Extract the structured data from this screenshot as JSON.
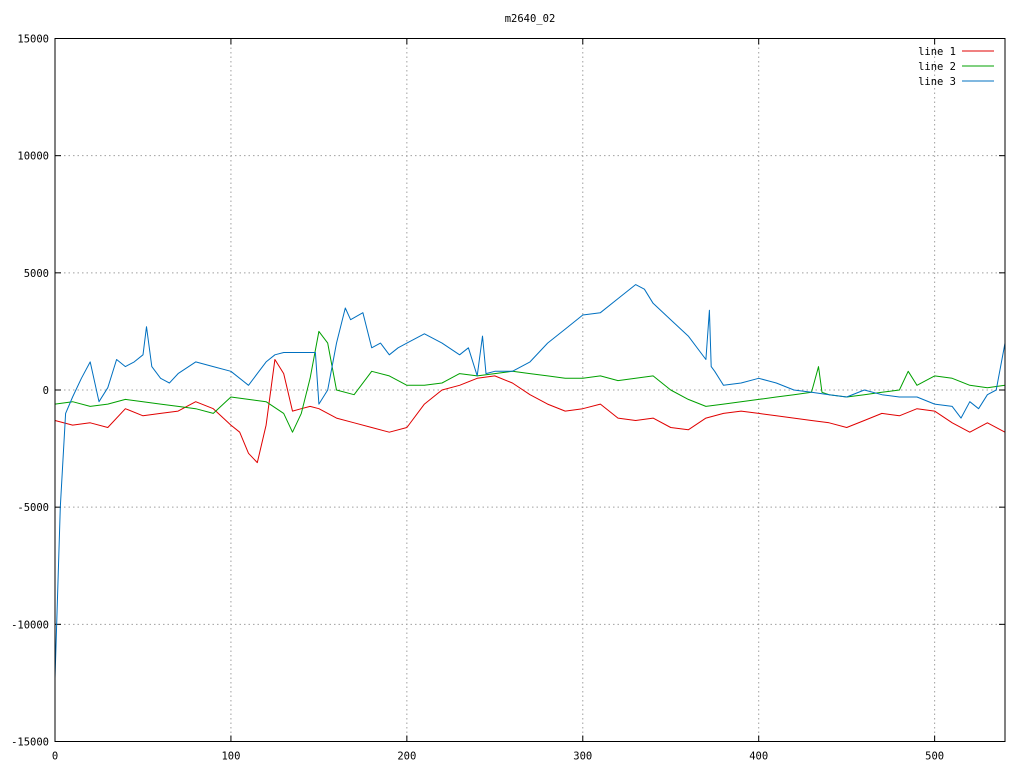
{
  "chart_data": {
    "type": "line",
    "title": "m2640_02",
    "xlabel": "",
    "ylabel": "",
    "xlim": [
      0,
      540
    ],
    "ylim": [
      -15000,
      15000
    ],
    "x_ticks": [
      0,
      100,
      200,
      300,
      400,
      500
    ],
    "y_ticks": [
      -15000,
      -10000,
      -5000,
      0,
      5000,
      10000,
      15000
    ],
    "grid": true,
    "legend_position": "top-right",
    "series": [
      {
        "name": "line 1",
        "color": "#e00000",
        "x": [
          0,
          10,
          20,
          30,
          40,
          50,
          60,
          70,
          80,
          90,
          100,
          105,
          110,
          115,
          120,
          125,
          130,
          135,
          140,
          145,
          150,
          160,
          170,
          180,
          190,
          200,
          210,
          220,
          230,
          240,
          250,
          260,
          270,
          280,
          290,
          300,
          310,
          320,
          330,
          340,
          350,
          360,
          370,
          380,
          390,
          400,
          410,
          420,
          430,
          440,
          450,
          460,
          470,
          480,
          490,
          500,
          510,
          520,
          530,
          540
        ],
        "y": [
          -1300,
          -1500,
          -1400,
          -1600,
          -800,
          -1100,
          -1000,
          -900,
          -500,
          -800,
          -1500,
          -1800,
          -2700,
          -3100,
          -1500,
          1300,
          700,
          -900,
          -800,
          -700,
          -800,
          -1200,
          -1400,
          -1600,
          -1800,
          -1600,
          -600,
          0,
          200,
          500,
          600,
          300,
          -200,
          -600,
          -900,
          -800,
          -600,
          -1200,
          -1300,
          -1200,
          -1600,
          -1700,
          -1200,
          -1000,
          -900,
          -1000,
          -1100,
          -1200,
          -1300,
          -1400,
          -1600,
          -1300,
          -1000,
          -1100,
          -800,
          -900,
          -1400,
          -1800,
          -1400,
          -1800
        ]
      },
      {
        "name": "line 2",
        "color": "#00a000",
        "x": [
          0,
          10,
          20,
          30,
          40,
          50,
          60,
          70,
          80,
          90,
          100,
          110,
          120,
          130,
          135,
          140,
          145,
          150,
          155,
          160,
          170,
          180,
          190,
          200,
          210,
          220,
          230,
          240,
          250,
          260,
          270,
          280,
          290,
          300,
          310,
          320,
          330,
          340,
          350,
          360,
          370,
          380,
          390,
          400,
          410,
          420,
          430,
          434,
          436,
          440,
          450,
          460,
          470,
          480,
          485,
          490,
          500,
          510,
          520,
          530,
          540
        ],
        "y": [
          -600,
          -500,
          -700,
          -600,
          -400,
          -500,
          -600,
          -700,
          -800,
          -1000,
          -300,
          -400,
          -500,
          -1000,
          -1800,
          -1000,
          500,
          2500,
          2000,
          0,
          -200,
          800,
          600,
          200,
          200,
          300,
          700,
          600,
          700,
          800,
          700,
          600,
          500,
          500,
          600,
          400,
          500,
          600,
          0,
          -400,
          -700,
          -600,
          -500,
          -400,
          -300,
          -200,
          -100,
          1000,
          -100,
          -200,
          -300,
          -200,
          -100,
          0,
          800,
          200,
          600,
          500,
          200,
          100,
          200
        ]
      },
      {
        "name": "line 3",
        "color": "#0070c0",
        "x": [
          0,
          3,
          6,
          10,
          15,
          20,
          25,
          30,
          35,
          40,
          45,
          50,
          52,
          55,
          60,
          65,
          70,
          80,
          90,
          100,
          110,
          115,
          120,
          125,
          130,
          148,
          150,
          155,
          160,
          165,
          168,
          175,
          180,
          185,
          190,
          195,
          200,
          210,
          220,
          230,
          235,
          240,
          243,
          245,
          250,
          260,
          270,
          280,
          290,
          300,
          310,
          320,
          330,
          335,
          340,
          350,
          360,
          370,
          372,
          373,
          375,
          380,
          390,
          400,
          410,
          420,
          430,
          440,
          450,
          460,
          470,
          480,
          490,
          500,
          510,
          515,
          520,
          525,
          530,
          535,
          540
        ],
        "y": [
          -12300,
          -5000,
          -1000,
          -300,
          500,
          1200,
          -500,
          100,
          1300,
          1000,
          1200,
          1500,
          2700,
          1000,
          500,
          300,
          700,
          1200,
          1000,
          800,
          200,
          700,
          1200,
          1500,
          1600,
          1600,
          -600,
          0,
          2000,
          3500,
          3000,
          3300,
          1800,
          2000,
          1500,
          1800,
          2000,
          2400,
          2000,
          1500,
          1800,
          600,
          2300,
          700,
          800,
          800,
          1200,
          2000,
          2600,
          3200,
          3300,
          3900,
          4500,
          4300,
          3700,
          3000,
          2300,
          1300,
          3400,
          1000,
          800,
          200,
          300,
          500,
          300,
          0,
          -100,
          -200,
          -300,
          0,
          -200,
          -300,
          -300,
          -600,
          -700,
          -1200,
          -500,
          -800,
          -200,
          0,
          2000
        ]
      }
    ]
  }
}
